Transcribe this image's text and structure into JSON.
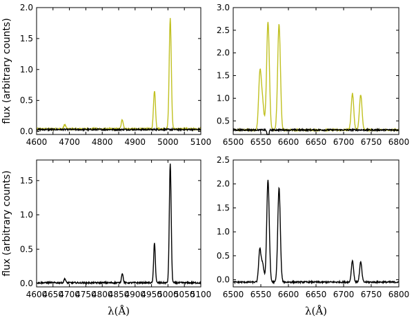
{
  "figure": {
    "ylabel": "flux (arbitrary counts)",
    "xlabel": "λ(Å)"
  },
  "colors": {
    "yellow": "#c0c020",
    "black": "#000000"
  },
  "chart_data": [
    {
      "type": "line",
      "panel": "top-left",
      "xlim": [
        4600,
        5100
      ],
      "ylim": [
        -0.05,
        2.0
      ],
      "xticks": [
        4600,
        4700,
        4800,
        4900,
        5000,
        5100
      ],
      "yticks": [
        0.0,
        0.5,
        1.0,
        1.5,
        2.0
      ],
      "ytick_labels": [
        "0.0",
        "0.5",
        "1.0",
        "1.5",
        "2.0"
      ],
      "ylabel": "flux (arbitrary counts)",
      "xlabel": "",
      "baselines": {
        "yellow": 0.04,
        "black": 0.03
      },
      "series": [
        {
          "color": "yellow",
          "baseline": 0.04,
          "peaks": [
            [
              4686,
              0.07,
              3
            ],
            [
              4861,
              0.15,
              3
            ],
            [
              4959,
              0.62,
              3
            ],
            [
              5007,
              1.78,
              3.2
            ]
          ]
        },
        {
          "color": "black",
          "baseline": 0.03,
          "peaks": []
        }
      ]
    },
    {
      "type": "line",
      "panel": "top-right",
      "xlim": [
        6500,
        6800
      ],
      "ylim": [
        0.2,
        3.0
      ],
      "xticks": [
        6500,
        6550,
        6600,
        6650,
        6700,
        6750,
        6800
      ],
      "yticks": [
        0.5,
        1.0,
        1.5,
        2.0,
        2.5,
        3.0
      ],
      "ytick_labels": [
        "0.5",
        "1.0",
        "1.5",
        "2.0",
        "2.5",
        "3.0"
      ],
      "ylabel": "",
      "xlabel": "",
      "series": [
        {
          "color": "yellow",
          "baseline": 0.3,
          "peaks": [
            [
              6548,
              0.98,
              2.2
            ],
            [
              6552,
              0.75,
              3
            ],
            [
              6563,
              2.38,
              2.5
            ],
            [
              6583,
              2.33,
              2.5
            ],
            [
              6716,
              0.8,
              2.3
            ],
            [
              6731,
              0.78,
              2.3
            ]
          ]
        },
        {
          "color": "black",
          "baseline": 0.3,
          "peaks": [
            [
              6563,
              0.22,
              1.5
            ]
          ],
          "dip": true
        }
      ]
    },
    {
      "type": "line",
      "panel": "bottom-left",
      "xlim": [
        4600,
        5100
      ],
      "ylim": [
        -0.05,
        1.8
      ],
      "xticks": [
        4600,
        4650,
        4700,
        4750,
        4800,
        4850,
        4900,
        4950,
        5000,
        5050,
        5100
      ],
      "xtick_labels": [
        "4600",
        "4650",
        "4700",
        "4750",
        "4800",
        "4850",
        "4900",
        "4950",
        "5000",
        "5050",
        "5100"
      ],
      "yticks": [
        0.0,
        0.5,
        1.0,
        1.5
      ],
      "ytick_labels": [
        "0.0",
        "0.5",
        "1.0",
        "1.5"
      ],
      "ylabel": "flux (arbitrary counts)",
      "xlabel": "λ(Å)",
      "series": [
        {
          "color": "black",
          "baseline": 0.01,
          "peaks": [
            [
              4686,
              0.06,
              2.5
            ],
            [
              4861,
              0.14,
              2.5
            ],
            [
              4959,
              0.59,
              2.5
            ],
            [
              5007,
              1.74,
              2.8
            ]
          ]
        }
      ]
    },
    {
      "type": "line",
      "panel": "bottom-right",
      "xlim": [
        6500,
        6800
      ],
      "ylim": [
        -0.15,
        2.5
      ],
      "xticks": [
        6500,
        6550,
        6600,
        6650,
        6700,
        6750,
        6800
      ],
      "yticks": [
        0.0,
        0.5,
        1.0,
        1.5,
        2.0,
        2.5
      ],
      "ytick_labels": [
        "0.0",
        "0.5",
        "1.0",
        "1.5",
        "2.0",
        "2.5"
      ],
      "ylabel": "",
      "xlabel": "λ(Å)",
      "series": [
        {
          "color": "black",
          "baseline": -0.05,
          "peaks": [
            [
              6548,
              0.65,
              2
            ],
            [
              6553,
              0.4,
              2.5
            ],
            [
              6563,
              2.13,
              2.3
            ],
            [
              6583,
              1.97,
              2.3
            ],
            [
              6716,
              0.45,
              2
            ],
            [
              6731,
              0.42,
              2
            ]
          ]
        }
      ]
    }
  ]
}
